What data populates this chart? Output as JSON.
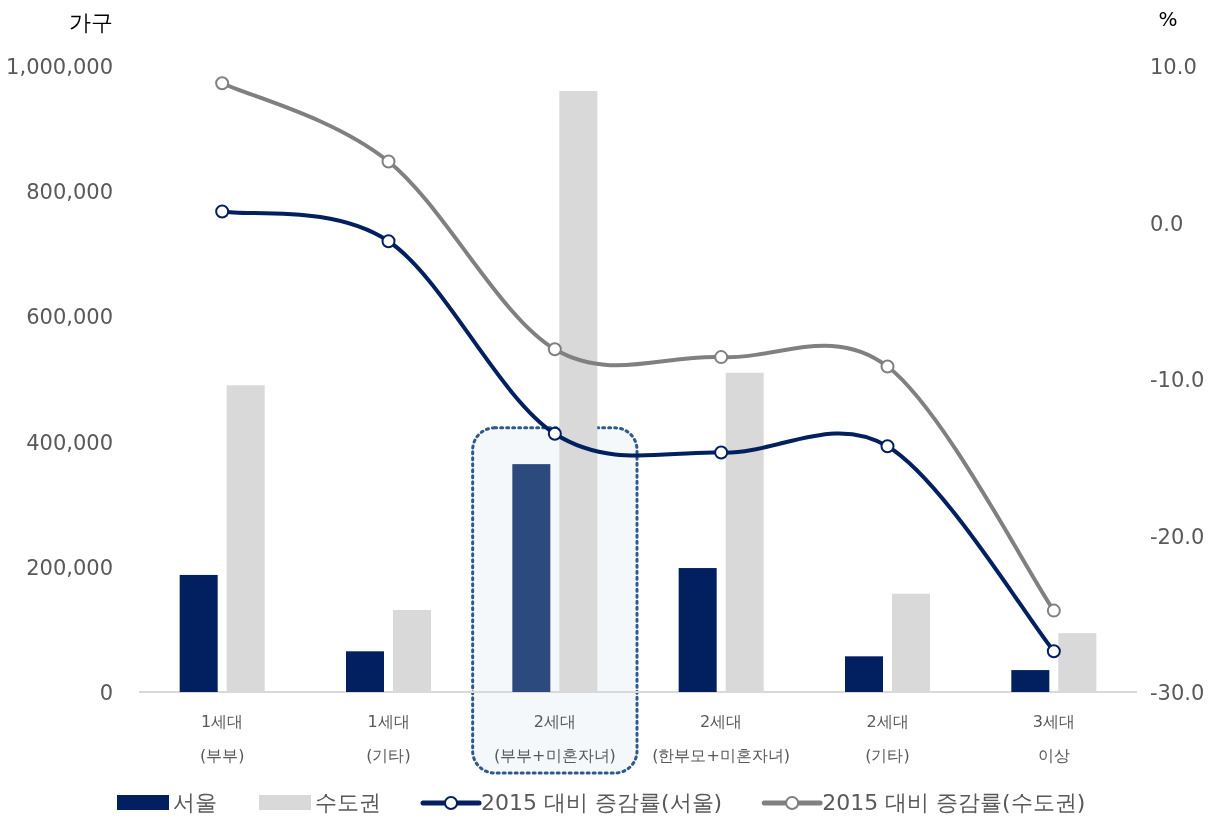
{
  "chart_data": {
    "type": "bar",
    "ylabel": "가구",
    "y2label": "%",
    "categories": [
      "1세대 (부부)",
      "1세대 (기타)",
      "2세대 (부부+미혼자녀)",
      "2세대 (한부모+미혼자녀)",
      "2세대 (기타)",
      "3세대 이상"
    ],
    "series": [
      {
        "name": "서울",
        "color": "#021f5f",
        "colors": [
          "#021f5f",
          "#021f5f",
          "#2c4a7e",
          "#021f5f",
          "#021f5f",
          "#021f5f"
        ],
        "values": [
          187000,
          65000,
          364000,
          198000,
          57000,
          35000
        ]
      },
      {
        "name": "수도권",
        "color": "#d9d9d9",
        "values": [
          490000,
          131000,
          960000,
          510000,
          157000,
          94000
        ]
      },
      {
        "name": "2015 대비 증감률(서울)",
        "type": "line",
        "axis": "y2",
        "color": "#021f5f",
        "values": [
          0.7,
          -1.2,
          -13.5,
          -14.7,
          -14.3,
          -27.4
        ]
      },
      {
        "name": "2015 대비 증감률(수도권)",
        "type": "line",
        "axis": "y2",
        "color": "#808080",
        "values": [
          8.9,
          3.9,
          -8.1,
          -8.6,
          -9.2,
          -24.8
        ]
      }
    ],
    "ylim": [
      0,
      1000000
    ],
    "yticks": [
      {
        "value": 0,
        "label": "0"
      },
      {
        "value": 200000,
        "label": "200,000"
      },
      {
        "value": 400000,
        "label": "400,000"
      },
      {
        "value": 600000,
        "label": "600,000"
      },
      {
        "value": 800000,
        "label": "800,000"
      },
      {
        "value": 1000000,
        "label": "1,000,000"
      }
    ],
    "y2lim": [
      -30,
      10
    ],
    "y2ticks": [
      {
        "value": -30,
        "label": "-30.0"
      },
      {
        "value": -20,
        "label": "-20.0"
      },
      {
        "value": -10,
        "label": "-10.0"
      },
      {
        "value": 0,
        "label": "0.0"
      },
      {
        "value": 10,
        "label": "10.0"
      }
    ],
    "bands": [
      {
        "axis": "x",
        "from": "2세대 (부부+미혼자녀)",
        "to": "2세대 (부부+미혼자녀)",
        "color": "#2c5a8c"
      }
    ],
    "marker": "circle",
    "grid": false,
    "legend": "bottom"
  }
}
